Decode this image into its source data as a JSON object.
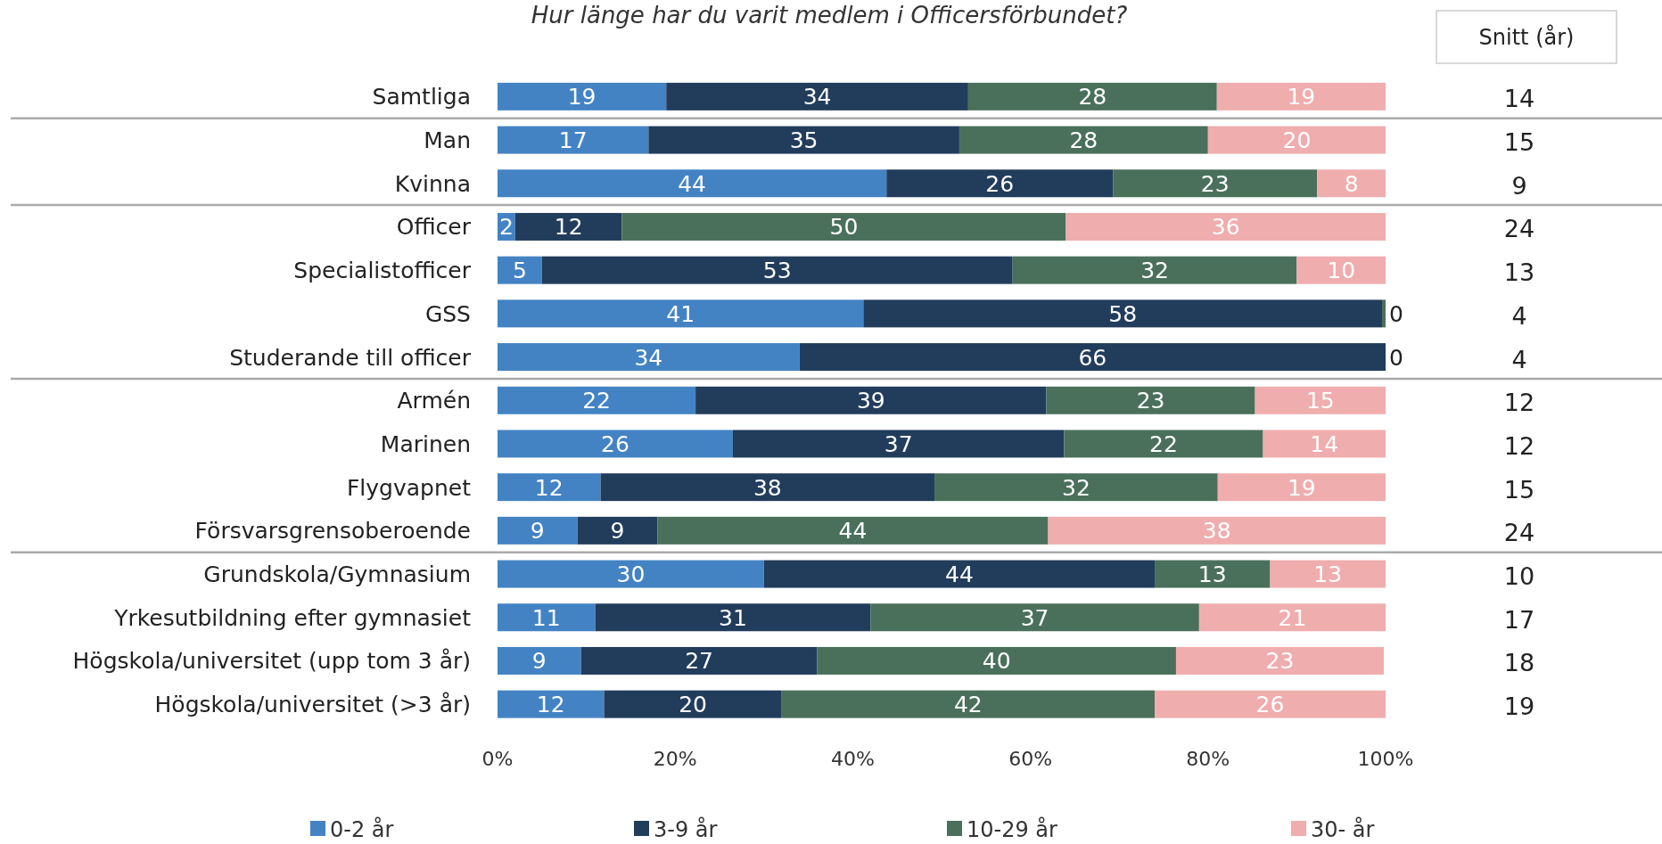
{
  "chart_data": {
    "type": "bar",
    "orientation": "horizontal",
    "stacked": true,
    "title": "Hur länge har du varit medlem i Officersförbundet?",
    "categories": [
      "Samtliga",
      "Man",
      "Kvinna",
      "Officer",
      "Specialistofficer",
      "GSS",
      "Studerande till officer",
      "Armén",
      "Marinen",
      "Flygvapnet",
      "Försvarsgrensoberoende",
      "Grundskola/Gymnasium",
      "Yrkesutbildning efter gymnasiet",
      "Högskola/universitet (upp tom 3 år)",
      "Högskola/universitet (>3 år)"
    ],
    "series": [
      {
        "name": "0-2 år",
        "color": "#4383c4",
        "values": [
          19,
          17,
          43.8,
          2,
          5,
          41.2,
          34,
          22.3,
          26.5,
          11.6,
          9,
          30,
          11,
          9.4,
          12
        ],
        "value_labels": [
          "19",
          "17",
          "44",
          "2",
          "5",
          "41",
          "34",
          "22",
          "26",
          "12",
          "9",
          "30",
          "11",
          "9",
          "12"
        ]
      },
      {
        "name": "3-9 år",
        "color": "#223d5c",
        "values": [
          34,
          35,
          25.5,
          12,
          53,
          58.4,
          66,
          39.5,
          37.3,
          37.6,
          9,
          44,
          31,
          26.6,
          20
        ],
        "value_labels": [
          "34",
          "35",
          "26",
          "12",
          "53",
          "58",
          "66",
          "39",
          "37",
          "38",
          "9",
          "44",
          "31",
          "27",
          "20"
        ]
      },
      {
        "name": "10-29 år",
        "color": "#4a705b",
        "values": [
          28,
          28,
          23,
          50,
          32,
          0.4,
          0,
          23.5,
          22.4,
          31.9,
          44,
          13,
          37,
          40.4,
          42
        ],
        "value_labels": [
          "28",
          "28",
          "23",
          "50",
          "32",
          "0",
          "0",
          "23",
          "22",
          "32",
          "44",
          "13",
          "37",
          "40",
          "42"
        ]
      },
      {
        "name": "30- år",
        "color": "#f0adae",
        "values": [
          19,
          20,
          7.7,
          36,
          10,
          null,
          null,
          14.7,
          13.8,
          18.9,
          38,
          13,
          21,
          23.4,
          26
        ],
        "value_labels": [
          "19",
          "20",
          "8",
          "36",
          "10",
          null,
          null,
          "15",
          "14",
          "19",
          "38",
          "13",
          "21",
          "23",
          "26"
        ]
      }
    ],
    "xlim": [
      0,
      100
    ],
    "xticks": [
      {
        "value": 0,
        "label": "0%"
      },
      {
        "value": 20,
        "label": "20%"
      },
      {
        "value": 40,
        "label": "40%"
      },
      {
        "value": 60,
        "label": "60%"
      },
      {
        "value": 80,
        "label": "80%"
      },
      {
        "value": 100,
        "label": "100%"
      }
    ],
    "legend": "bottom",
    "grid": false,
    "annotations": [
      "Snitt (år)",
      "14",
      "15",
      "9",
      "24",
      "13",
      "4",
      "4",
      "12",
      "12",
      "15",
      "24",
      "10",
      "17",
      "18",
      "19"
    ]
  }
}
